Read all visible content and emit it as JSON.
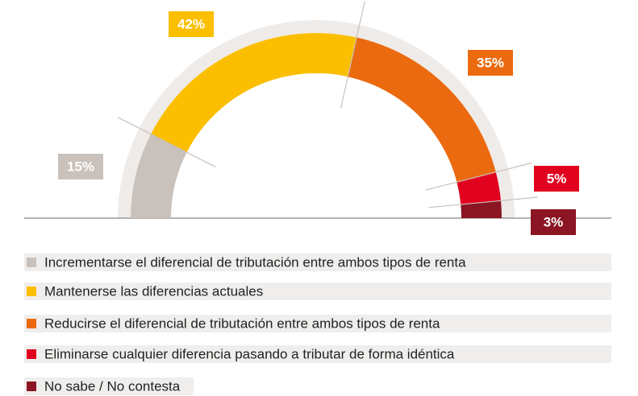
{
  "chart_data": {
    "type": "semi-donut",
    "categories": [
      "Incrementarse el diferencial de tributación entre ambos tipos de renta",
      "Mantenerse las diferencias actuales",
      "Reducirse el diferencial de tributación entre ambos tipos de renta",
      "Eliminarse cualquier diferencia pasando a tributar de forma idéntica",
      "No sabe / No contesta"
    ],
    "values": [
      15,
      42,
      35,
      5,
      3
    ],
    "value_labels": [
      "15%",
      "42%",
      "35%",
      "5%",
      "3%"
    ],
    "colors": [
      "#c9c1bb",
      "#fbbf00",
      "#eb6a10",
      "#e1001e",
      "#8b1523"
    ]
  }
}
